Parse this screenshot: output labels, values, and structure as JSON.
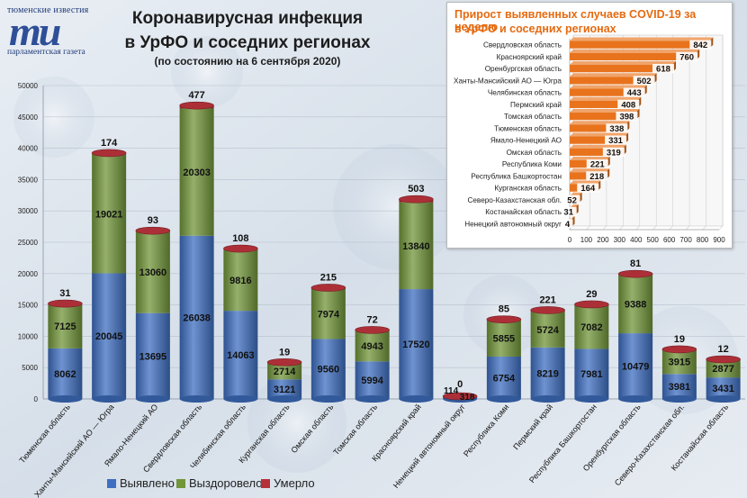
{
  "logo": {
    "top_text": "тюменские известия",
    "mark": "ти",
    "bottom_text": "парламентская газета"
  },
  "title": {
    "line1": "Коронавирусная инфекция",
    "line2": "в УрФО и соседних регионах",
    "line3": "(по состоянию на 6 сентября 2020)"
  },
  "legend": {
    "detected": "Выявлено",
    "recovered": "Выздоровело",
    "died": "Умерло"
  },
  "colors": {
    "detected": "#3f6fc1",
    "recovered": "#72963a",
    "died": "#b5313a",
    "inset_bar": "#e8731c"
  },
  "chart_data": [
    {
      "type": "bar",
      "stacked": true,
      "title": "Коронавирусная инфекция в УрФО и соседних регионах",
      "ylim": [
        0,
        50000
      ],
      "yticks": [
        0,
        5000,
        10000,
        15000,
        20000,
        25000,
        30000,
        35000,
        40000,
        45000,
        50000
      ],
      "categories": [
        "Тюменская область",
        "Ханты-Мансийский АО — Югра",
        "Ямало-Ненецкий АО",
        "Свердловская область",
        "Челябинская область",
        "Курганская область",
        "Омская область",
        "Томская область",
        "Красноярский край",
        "Ненецкий автономный округ",
        "Республика Коми",
        "Пермский край",
        "Республика Башкортостан",
        "Оренбургская область",
        "Северо-Казахстанская обл.",
        "Костанайская  область"
      ],
      "series": [
        {
          "name": "Выявлено",
          "values": [
            8062,
            20045,
            13695,
            26038,
            14063,
            3121,
            9560,
            5994,
            17520,
            318,
            6754,
            8219,
            7981,
            10479,
            3981,
            3431
          ]
        },
        {
          "name": "Выздоровело",
          "values": [
            7125,
            19021,
            13060,
            20303,
            9816,
            2714,
            7974,
            4943,
            13840,
            114,
            5855,
            5724,
            7082,
            9388,
            3915,
            2877
          ]
        },
        {
          "name": "Умерло",
          "values": [
            31,
            174,
            93,
            477,
            108,
            19,
            215,
            72,
            503,
            0,
            85,
            221,
            29,
            81,
            19,
            12
          ]
        }
      ]
    },
    {
      "type": "bar",
      "orientation": "horizontal",
      "title": "Прирост выявленных случаев COVID-19 за неделю в УрФО и соседних регионах",
      "xlim": [
        0,
        900
      ],
      "xticks": [
        0,
        100,
        200,
        300,
        400,
        500,
        600,
        700,
        800,
        900
      ],
      "categories": [
        "Свердловская область",
        "Красноярский край",
        "Оренбургская область",
        "Ханты-Мансийский АО — Югра",
        "Челябинская область",
        "Пермский край",
        "Томская область",
        "Тюменская область",
        "Ямало-Ненецкий АО",
        "Омская область",
        "Республика Коми",
        "Республика Башкортостан",
        "Курганская область",
        "Северо-Казахстанская обл.",
        "Костанайская область",
        "Ненецкий автономный  округ"
      ],
      "values": [
        842,
        760,
        618,
        502,
        443,
        408,
        398,
        338,
        331,
        319,
        221,
        218,
        164,
        52,
        31,
        4
      ]
    }
  ]
}
